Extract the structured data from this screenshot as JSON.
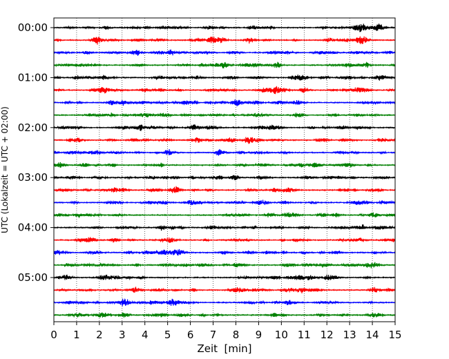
{
  "chart_data": {
    "type": "line",
    "title": "",
    "xlabel": "Zeit  [min]",
    "ylabel": "UTC (Lokalzeit = UTC + 02:00)",
    "xlim": [
      0,
      15
    ],
    "x_ticks": [
      "0",
      "1",
      "2",
      "3",
      "4",
      "5",
      "6",
      "7",
      "8",
      "9",
      "10",
      "11",
      "12",
      "13",
      "14",
      "15"
    ],
    "y_tick_labels": [
      "00:00",
      "01:00",
      "02:00",
      "03:00",
      "04:00",
      "05:00"
    ],
    "y_tick_trace_index": [
      0,
      4,
      8,
      12,
      16,
      20
    ],
    "trace_count": 24,
    "trace_interval_min": 15,
    "trace_colors": [
      "#000000",
      "#ff0000",
      "#0000ff",
      "#008000"
    ],
    "vertical_grid": "dotted",
    "bursts": [
      {
        "trace": 0,
        "at_min": 13.5,
        "strength": 2.2
      },
      {
        "trace": 1,
        "at_min": 13.5,
        "strength": 2.8
      },
      {
        "trace": 4,
        "at_min": 14.3,
        "strength": 2.0
      },
      {
        "trace": 5,
        "at_min": 9.8,
        "strength": 1.6
      },
      {
        "trace": 6,
        "at_min": 5.8,
        "strength": 1.6
      },
      {
        "trace": 6,
        "at_min": 8.1,
        "strength": 1.4
      },
      {
        "trace": 8,
        "at_min": 6.2,
        "strength": 2.0
      },
      {
        "trace": 9,
        "at_min": 8.6,
        "strength": 1.6
      },
      {
        "trace": 11,
        "at_min": 12.9,
        "strength": 1.5
      },
      {
        "trace": 13,
        "at_min": 5.3,
        "strength": 1.5
      },
      {
        "trace": 18,
        "at_min": 5.4,
        "strength": 1.6
      },
      {
        "trace": 21,
        "at_min": 10.3,
        "strength": 1.3
      },
      {
        "trace": 22,
        "at_min": 3.2,
        "strength": 1.3
      }
    ]
  }
}
